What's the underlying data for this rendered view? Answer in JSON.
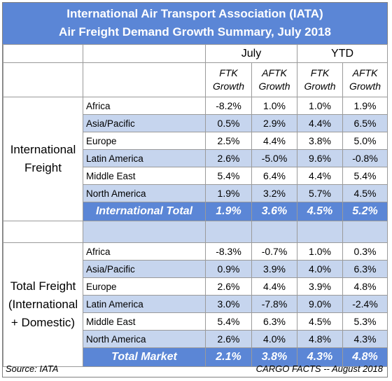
{
  "title_line1": "International Air Transport Association (IATA)",
  "title_line2": "Air Freight Demand Growth Summary, July 2018",
  "periods": [
    "July",
    "YTD"
  ],
  "columns": [
    {
      "line1": "FTK",
      "line2": "Growth"
    },
    {
      "line1": "AFTK",
      "line2": "Growth"
    },
    {
      "line1": "FTK",
      "line2": "Growth"
    },
    {
      "line1": "AFTK",
      "line2": "Growth"
    }
  ],
  "international": {
    "group_label_1": "International",
    "group_label_2": "Freight",
    "rows": [
      {
        "region": "Africa",
        "v": [
          "-8.2%",
          "1.0%",
          "1.0%",
          "1.9%"
        ]
      },
      {
        "region": "Asia/Pacific",
        "v": [
          "0.5%",
          "2.9%",
          "4.4%",
          "6.5%"
        ]
      },
      {
        "region": "Europe",
        "v": [
          "2.5%",
          "4.4%",
          "3.8%",
          "5.0%"
        ]
      },
      {
        "region": "Latin America",
        "v": [
          "2.6%",
          "-5.0%",
          "9.6%",
          "-0.8%"
        ]
      },
      {
        "region": "Middle East",
        "v": [
          "5.4%",
          "6.4%",
          "4.4%",
          "5.4%"
        ]
      },
      {
        "region": "North America",
        "v": [
          "1.9%",
          "3.2%",
          "5.7%",
          "4.5%"
        ]
      }
    ],
    "total": {
      "label": "International Total",
      "v": [
        "1.9%",
        "3.6%",
        "4.5%",
        "5.2%"
      ]
    }
  },
  "total_market": {
    "group_label_1": "Total Freight",
    "group_label_2": "(International",
    "group_label_3": "+ Domestic)",
    "rows": [
      {
        "region": "Africa",
        "v": [
          "-8.3%",
          "-0.7%",
          "1.0%",
          "0.3%"
        ]
      },
      {
        "region": "Asia/Pacific",
        "v": [
          "0.9%",
          "3.9%",
          "4.0%",
          "6.3%"
        ]
      },
      {
        "region": "Europe",
        "v": [
          "2.6%",
          "4.4%",
          "3.9%",
          "4.8%"
        ]
      },
      {
        "region": "Latin America",
        "v": [
          "3.0%",
          "-7.8%",
          "9.0%",
          "-2.4%"
        ]
      },
      {
        "region": "Middle East",
        "v": [
          "5.4%",
          "6.3%",
          "4.5%",
          "5.3%"
        ]
      },
      {
        "region": "North America",
        "v": [
          "2.6%",
          "4.0%",
          "4.8%",
          "4.3%"
        ]
      }
    ],
    "total": {
      "label": "Total Market",
      "v": [
        "2.1%",
        "3.8%",
        "4.3%",
        "4.8%"
      ]
    }
  },
  "source": "Source: IATA",
  "credit": "CARGO FACTS -- August 2018",
  "colors": {
    "header_blue": "#5b86d6",
    "row_shade": "#c6d5ee"
  }
}
